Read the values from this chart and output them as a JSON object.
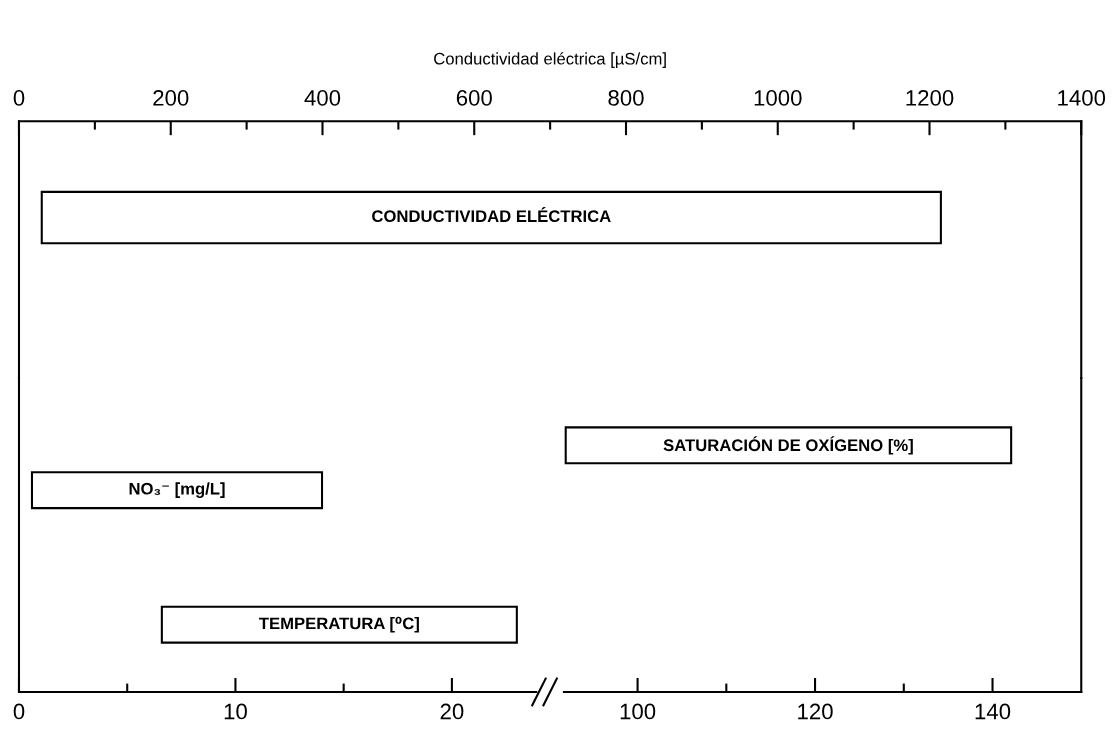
{
  "chart_data": [
    {
      "type": "bar",
      "orientation": "horizontal",
      "xlabel": "Conductividad eléctrica [µS/cm]",
      "categories": [
        null,
        "CONDUCTIVIDAD ELÉCTRICA",
        null,
        null
      ],
      "base": [
        null,
        30,
        null,
        null
      ],
      "values": [
        null,
        1185,
        null,
        null
      ],
      "color": "#ffffff",
      "xlim": [
        0,
        1400
      ],
      "xticks": [
        0,
        {
          "value": 100,
          "label": null
        },
        200,
        {
          "value": 300,
          "label": null
        },
        400,
        {
          "value": 500,
          "label": null
        },
        600,
        {
          "value": 700,
          "label": null
        },
        800,
        {
          "value": 900,
          "label": null
        },
        1000,
        {
          "value": 1100,
          "label": null
        },
        1200,
        {
          "value": 1300,
          "label": null
        },
        1400
      ]
    },
    {
      "type": "bar",
      "orientation": "horizontal",
      "categories": [
        null,
        null,
        "NO₃⁻ [mg/L]",
        null,
        null,
        "TEMPERATURA [⁰C]",
        null
      ],
      "base": [
        null,
        null,
        0.6,
        null,
        null,
        6.6,
        null
      ],
      "values": [
        null,
        null,
        13.4,
        null,
        null,
        16.4,
        null
      ],
      "color": "#ffffff",
      "xlim": [
        0,
        23.9
      ],
      "xticks": [
        0,
        {
          "value": 5,
          "label": null
        },
        10,
        {
          "value": 15,
          "label": null
        },
        20
      ]
    },
    {
      "type": "bar",
      "orientation": "horizontal",
      "categories": [
        null,
        "SATURACIÓN DE OXÍGENO [%]",
        null,
        null,
        null,
        null,
        null
      ],
      "base": [
        null,
        91.9,
        null,
        null,
        null,
        null,
        null
      ],
      "values": [
        null,
        50.2,
        null,
        null,
        null,
        null,
        null
      ],
      "color": "#ffffff",
      "xlim": [
        91.7,
        150
      ],
      "xticks": [
        100,
        {
          "value": 110,
          "label": null
        },
        120,
        {
          "value": 130,
          "label": null
        },
        140
      ]
    }
  ]
}
